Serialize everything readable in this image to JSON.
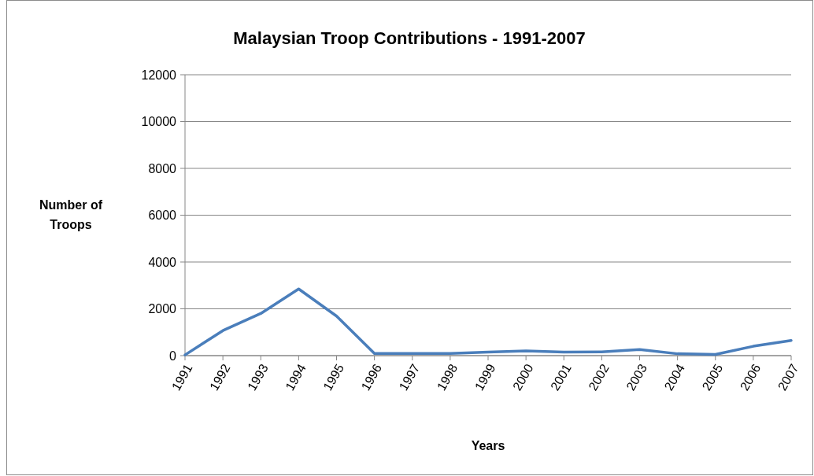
{
  "chart_data": {
    "type": "line",
    "title": "Malaysian Troop Contributions - 1991-2007",
    "xlabel": "Years",
    "ylabel": "Number of Troops",
    "categories": [
      "1991",
      "1992",
      "1993",
      "1994",
      "1995",
      "1996",
      "1997",
      "1998",
      "1999",
      "2000",
      "2001",
      "2002",
      "2003",
      "2004",
      "2005",
      "2006",
      "2007"
    ],
    "series": [
      {
        "color": "#4a7ebb",
        "values": [
          30,
          1070,
          1800,
          2850,
          1690,
          90,
          90,
          90,
          150,
          200,
          150,
          160,
          260,
          80,
          50,
          400,
          650
        ]
      }
    ],
    "ylim": [
      0,
      12000
    ],
    "yticks": [
      0,
      2000,
      4000,
      6000,
      8000,
      10000,
      12000
    ],
    "grid": "y",
    "marker": "none",
    "line_style": "solid"
  }
}
